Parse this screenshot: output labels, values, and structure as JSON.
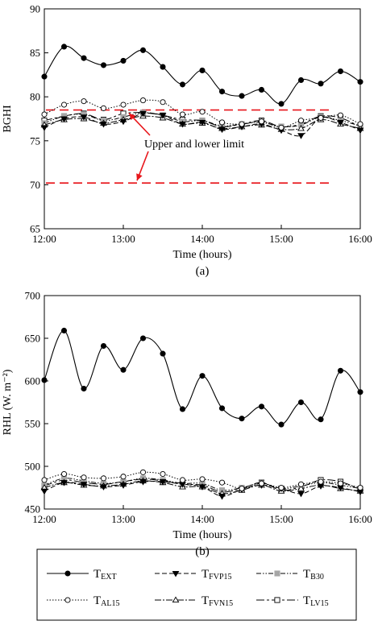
{
  "chart_data": [
    {
      "type": "line",
      "panel_label": "(a)",
      "ylabel": "BGHI",
      "xlabel": "Time (hours)",
      "ylim": [
        65,
        90
      ],
      "yticks": [
        65,
        70,
        75,
        80,
        85,
        90
      ],
      "xlim": [
        "12:00",
        "16:00"
      ],
      "xticks": [
        "12:00",
        "13:00",
        "14:00",
        "15:00",
        "16:00"
      ],
      "grid": false,
      "annotation": "Upper and lower limit",
      "reference_lines": [
        78.5,
        70.2
      ],
      "x": [
        "12:00",
        "12:15",
        "12:30",
        "12:45",
        "13:00",
        "13:15",
        "13:30",
        "13:45",
        "14:00",
        "14:15",
        "14:30",
        "14:45",
        "15:00",
        "15:15",
        "15:30",
        "15:45",
        "16:00"
      ],
      "series": [
        {
          "name": "TEXT",
          "values": [
            82.3,
            85.7,
            84.4,
            83.6,
            84.1,
            85.3,
            83.4,
            81.4,
            83.0,
            80.6,
            80.1,
            80.8,
            79.2,
            81.9,
            81.5,
            82.9,
            81.7
          ]
        },
        {
          "name": "TAL15",
          "values": [
            78.0,
            79.1,
            79.5,
            78.7,
            79.1,
            79.6,
            79.4,
            78.0,
            78.3,
            77.1,
            76.9,
            77.2,
            76.5,
            77.3,
            77.6,
            77.9,
            76.9
          ]
        },
        {
          "name": "TFVP15",
          "values": [
            76.5,
            77.5,
            77.7,
            76.9,
            77.2,
            78.1,
            77.9,
            76.9,
            77.1,
            76.3,
            76.6,
            76.9,
            76.2,
            75.6,
            77.6,
            77.1,
            76.2
          ]
        },
        {
          "name": "TFVN15",
          "values": [
            76.8,
            77.4,
            77.5,
            77.0,
            77.4,
            77.8,
            77.6,
            76.9,
            77.0,
            76.4,
            76.6,
            76.8,
            76.3,
            76.4,
            77.4,
            76.9,
            76.4
          ]
        },
        {
          "name": "TB30",
          "values": [
            77.0,
            77.8,
            78.0,
            77.3,
            77.7,
            78.2,
            77.9,
            77.2,
            77.3,
            76.7,
            76.9,
            77.1,
            76.6,
            76.8,
            77.7,
            77.3,
            76.7
          ]
        },
        {
          "name": "TLV15",
          "values": [
            77.3,
            77.8,
            78.1,
            77.4,
            78.1,
            78.2,
            77.9,
            77.4,
            77.3,
            76.6,
            76.9,
            77.3,
            76.6,
            76.9,
            77.8,
            77.6,
            76.6
          ]
        }
      ]
    },
    {
      "type": "line",
      "panel_label": "(b)",
      "ylabel": "RHL (W. m⁻²)",
      "xlabel": "Time (hours)",
      "ylim": [
        450,
        700
      ],
      "yticks": [
        450,
        500,
        550,
        600,
        650,
        700
      ],
      "xlim": [
        "12:00",
        "16:00"
      ],
      "xticks": [
        "12:00",
        "13:00",
        "14:00",
        "15:00",
        "16:00"
      ],
      "grid": false,
      "x": [
        "12:00",
        "12:15",
        "12:30",
        "12:45",
        "13:00",
        "13:15",
        "13:30",
        "13:45",
        "14:00",
        "14:15",
        "14:30",
        "14:45",
        "15:00",
        "15:15",
        "15:30",
        "15:45",
        "16:00"
      ],
      "series": [
        {
          "name": "TEXT",
          "values": [
            601,
            659,
            591,
            641,
            613,
            650,
            632,
            567,
            606,
            568,
            556,
            570,
            549,
            575,
            555,
            612,
            587
          ]
        },
        {
          "name": "TAL15",
          "values": [
            484,
            491,
            487,
            486,
            488,
            493,
            491,
            484,
            485,
            481,
            474,
            480,
            475,
            479,
            482,
            480,
            475
          ]
        },
        {
          "name": "TFVP15",
          "values": [
            471,
            481,
            479,
            476,
            478,
            482,
            482,
            479,
            476,
            465,
            473,
            478,
            474,
            468,
            477,
            475,
            470
          ]
        },
        {
          "name": "TFVN15",
          "values": [
            475,
            481,
            478,
            477,
            479,
            483,
            481,
            476,
            476,
            468,
            472,
            478,
            471,
            474,
            478,
            474,
            471
          ]
        },
        {
          "name": "TB30",
          "values": [
            478,
            486,
            483,
            480,
            482,
            486,
            484,
            480,
            480,
            472,
            475,
            480,
            474,
            477,
            481,
            478,
            474
          ]
        },
        {
          "name": "TLV15",
          "values": [
            477,
            484,
            481,
            479,
            482,
            485,
            483,
            479,
            478,
            470,
            474,
            481,
            472,
            476,
            484,
            482,
            473
          ]
        }
      ]
    }
  ],
  "legend": [
    {
      "main": "T",
      "sub": "EXT",
      "style": "TEXT"
    },
    {
      "main": "T",
      "sub": "FVP15",
      "style": "TFVP15"
    },
    {
      "main": "T",
      "sub": "B30",
      "style": "TB30"
    },
    {
      "main": "T",
      "sub": "AL15",
      "style": "TAL15"
    },
    {
      "main": "T",
      "sub": "FVN15",
      "style": "TFVN15"
    },
    {
      "main": "T",
      "sub": "LV15",
      "style": "TLV15"
    }
  ],
  "colors": {
    "reference_line": "#e8161b",
    "annotation_arrow": "#e8161b",
    "series": "#000000",
    "b30_marker": "#a6a6a6"
  }
}
